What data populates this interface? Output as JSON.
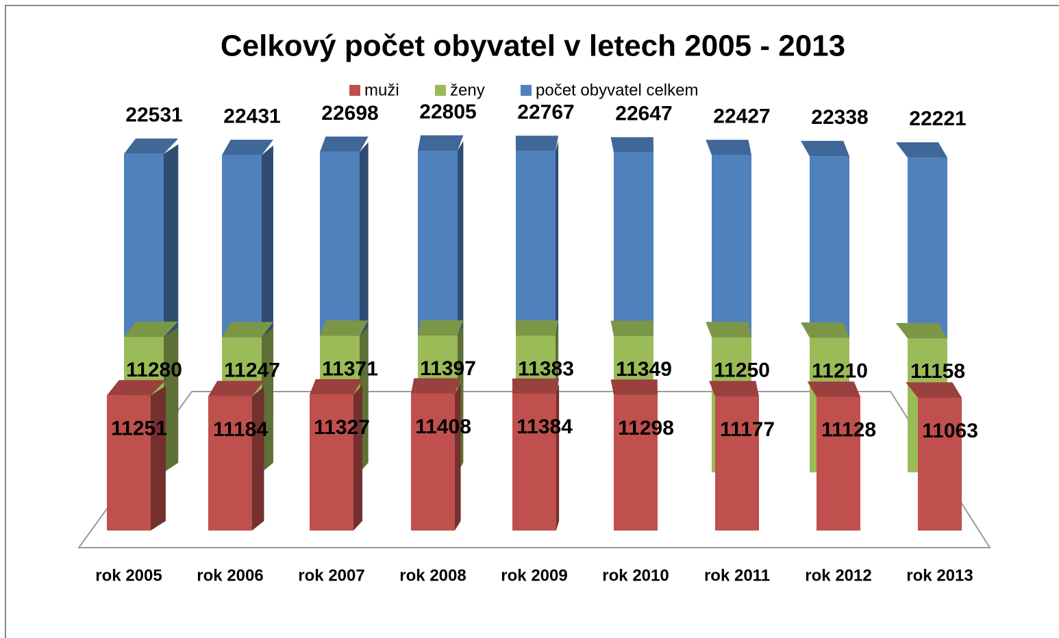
{
  "chart_data": {
    "type": "bar3d",
    "title": "Celkový počet obyvatel v letech 2005 - 2013",
    "categories": [
      "rok 2005",
      "rok 2006",
      "rok 2007",
      "rok 2008",
      "rok 2009",
      "rok 2010",
      "rok 2011",
      "rok 2012",
      "rok 2013"
    ],
    "series": [
      {
        "name": "muži",
        "color": "#c0504d",
        "values": [
          11251,
          11184,
          11327,
          11408,
          11384,
          11298,
          11177,
          11128,
          11063
        ]
      },
      {
        "name": "ženy",
        "color": "#9bbb59",
        "values": [
          11280,
          11247,
          11371,
          11397,
          11383,
          11349,
          11250,
          11210,
          11158
        ]
      },
      {
        "name": "počet obyvatel celkem",
        "color": "#4f81bd",
        "values": [
          22531,
          22431,
          22698,
          22805,
          22767,
          22647,
          22427,
          22338,
          22221
        ]
      }
    ],
    "legend": "top"
  }
}
